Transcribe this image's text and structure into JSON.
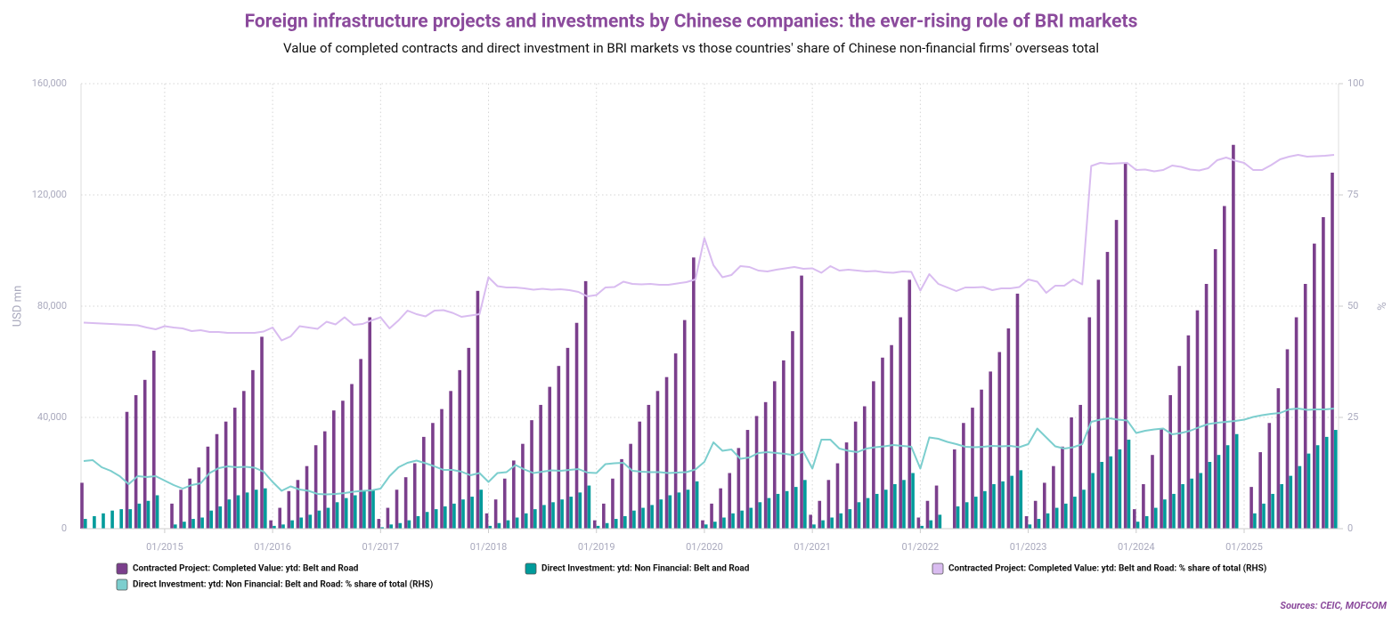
{
  "chart_data": {
    "type": "bar",
    "title": "Foreign infrastructure projects and investments by Chinese companies: the ever-rising role of BRI markets",
    "subtitle": "Value of completed contracts and direct investment in BRI markets vs those countries' share of Chinese non-financial firms' overseas total",
    "y_label": "USD mn",
    "y2_label": "%",
    "source": "Sources: CEIC, MOFCOM",
    "grid": true,
    "categories": [
      null,
      null,
      null,
      null,
      null,
      null,
      null,
      null,
      null,
      "01/2015",
      null,
      null,
      null,
      null,
      null,
      null,
      null,
      null,
      null,
      null,
      null,
      "01/2016",
      null,
      null,
      null,
      null,
      null,
      null,
      null,
      null,
      null,
      null,
      null,
      "01/2017",
      null,
      null,
      null,
      null,
      null,
      null,
      null,
      null,
      null,
      null,
      null,
      "01/2018",
      null,
      null,
      null,
      null,
      null,
      null,
      null,
      null,
      null,
      null,
      null,
      "01/2019",
      null,
      null,
      null,
      null,
      null,
      null,
      null,
      null,
      null,
      null,
      null,
      "01/2020",
      null,
      null,
      null,
      null,
      null,
      null,
      null,
      null,
      null,
      null,
      null,
      "01/2021",
      null,
      null,
      null,
      null,
      null,
      null,
      null,
      null,
      null,
      null,
      null,
      "01/2022",
      null,
      null,
      null,
      null,
      null,
      null,
      null,
      null,
      null,
      null,
      null,
      "01/2023",
      null,
      null,
      null,
      null,
      null,
      null,
      null,
      null,
      null,
      null,
      null,
      "01/2024",
      null,
      null,
      null,
      null,
      null,
      null,
      null,
      null,
      null,
      null,
      null,
      "01/2025",
      null,
      null,
      null,
      null,
      null,
      null,
      null,
      null,
      null,
      null
    ],
    "ylim": [
      0,
      160000
    ],
    "yticks": [
      0,
      {
        "value": 40000,
        "label": "40,000"
      },
      {
        "value": 80000,
        "label": "80,000"
      },
      {
        "value": 120000,
        "label": "120,000"
      },
      {
        "value": 160000,
        "label": "160,000"
      }
    ],
    "y2lim": [
      0,
      100
    ],
    "y2ticks": [
      0,
      25,
      50,
      75,
      100
    ],
    "series": [
      {
        "name": "Contracted Project: Completed Value: ytd: Belt and Road",
        "color": "#7b3f8c",
        "type": "bar",
        "values": [
          16500,
          null,
          null,
          null,
          null,
          42000,
          48000,
          53500,
          64000,
          null,
          9000,
          14000,
          18000,
          22000,
          29500,
          34000,
          38500,
          43500,
          49500,
          57000,
          69000,
          3000,
          7500,
          13500,
          17500,
          22500,
          30000,
          35000,
          42500,
          46000,
          52000,
          61000,
          76000,
          3500,
          7500,
          14000,
          18500,
          23500,
          33000,
          38000,
          43000,
          49500,
          57000,
          65000,
          85500,
          5500,
          10500,
          18000,
          24500,
          30500,
          39000,
          44500,
          51000,
          58500,
          65000,
          74000,
          89000,
          3000,
          9000,
          18000,
          25000,
          30500,
          38500,
          44500,
          49500,
          54500,
          63000,
          75000,
          97500,
          3000,
          9000,
          14500,
          20000,
          29000,
          35500,
          40500,
          45500,
          53000,
          60500,
          71000,
          91000,
          5000,
          10000,
          17500,
          23500,
          31000,
          38500,
          44000,
          53000,
          61500,
          66000,
          76000,
          89500,
          4000,
          10000,
          15500,
          null,
          28500,
          38000,
          43500,
          50000,
          56500,
          63500,
          72000,
          84500,
          4500,
          10000,
          16500,
          22500,
          29500,
          40000,
          44500,
          76000,
          89500,
          99500,
          111000,
          131500,
          7000,
          16000,
          26500,
          36000,
          48000,
          58500,
          69500,
          78500,
          88000,
          100500,
          116000,
          138000,
          null,
          15000,
          27500,
          38000,
          50500,
          64500,
          76000,
          88000,
          102500,
          112000,
          128000
        ]
      },
      {
        "name": "Direct Investment: ytd: Non Financial: Belt and Road",
        "color": "#009b9b",
        "type": "bar",
        "values": [
          3500,
          4500,
          5500,
          6500,
          7000,
          7000,
          9000,
          10000,
          12000,
          null,
          1500,
          2500,
          3500,
          4000,
          6500,
          8000,
          10500,
          12000,
          13000,
          14000,
          14500,
          1000,
          1500,
          3000,
          4000,
          5000,
          6500,
          7500,
          9500,
          11000,
          12000,
          13500,
          14000,
          500,
          1500,
          2000,
          3000,
          4500,
          6000,
          7000,
          8000,
          9000,
          10500,
          11500,
          14000,
          1000,
          2000,
          3000,
          4000,
          5500,
          7000,
          8500,
          9500,
          10500,
          11500,
          13000,
          15500,
          1000,
          2000,
          3500,
          4500,
          6500,
          7500,
          8500,
          10500,
          12000,
          13000,
          14000,
          17000,
          1500,
          2500,
          4000,
          5500,
          6500,
          7500,
          9500,
          11000,
          12500,
          13500,
          15000,
          17500,
          1500,
          3000,
          4000,
          5500,
          7000,
          9500,
          11000,
          12500,
          14000,
          16000,
          17500,
          20000,
          1000,
          3000,
          5000,
          null,
          8000,
          9500,
          11500,
          13500,
          16000,
          17000,
          19000,
          21000,
          1500,
          3500,
          5500,
          7500,
          9000,
          11500,
          14000,
          20000,
          24000,
          26000,
          28500,
          32000,
          2500,
          4500,
          7500,
          10500,
          12500,
          16000,
          18000,
          20000,
          24000,
          26500,
          30000,
          34000,
          null,
          5500,
          9000,
          12500,
          16000,
          19000,
          22500,
          27000,
          30000,
          33000,
          35500
        ]
      },
      {
        "name": "Contracted Project: Completed Value: ytd: Belt and Road: % share of total (RHS)",
        "color": "#d9bcf0",
        "type": "line",
        "axis": "y2",
        "values": [
          46.3,
          46.2,
          46.1,
          46,
          45.9,
          45.8,
          45.7,
          45.2,
          44.8,
          45.5,
          45.2,
          45,
          44.4,
          44.6,
          44.2,
          44.2,
          44,
          44,
          44,
          44,
          44.3,
          45.2,
          42.3,
          43.2,
          45.5,
          45.2,
          44.9,
          46.5,
          45.9,
          47.5,
          45.8,
          46,
          46.8,
          47.5,
          45,
          46.8,
          49,
          48.2,
          47.7,
          49,
          49.1,
          48.5,
          47.6,
          47.9,
          48.2,
          56.5,
          54.5,
          54.2,
          54.2,
          54,
          53.7,
          53.9,
          53.7,
          53.8,
          53.6,
          53.2,
          52.2,
          52.5,
          54.2,
          54.3,
          55.5,
          55,
          54.9,
          55,
          54.8,
          54.8,
          55.1,
          55.4,
          56,
          65.3,
          59.2,
          56.5,
          57,
          59,
          58.8,
          58,
          57.8,
          58.2,
          58.5,
          58.8,
          58.4,
          58.5,
          57.5,
          59,
          58,
          58.2,
          58,
          57.8,
          57.9,
          57.6,
          57.5,
          57.8,
          57.7,
          53.5,
          57.2,
          55,
          54.2,
          53.4,
          54.2,
          54.2,
          54.3,
          53.6,
          54,
          54,
          54.3,
          56,
          55.5,
          53,
          54.6,
          54.6,
          56,
          54.9,
          81.5,
          82.2,
          82,
          82.1,
          82.2,
          80.6,
          80.7,
          80.3,
          80.6,
          81.6,
          81.3,
          80.7,
          80.5,
          81,
          82.8,
          83.4,
          82.7,
          82.2,
          80.6,
          80.6,
          81.7,
          83,
          83.6,
          84,
          83.6,
          83.7,
          83.8,
          84
        ]
      },
      {
        "name": "Direct Investment: ytd: Non Financial: Belt and Road: % share of total (RHS)",
        "color": "#7ccece",
        "type": "line",
        "axis": "y2",
        "values": [
          15.2,
          15.4,
          13.8,
          13,
          11.8,
          10,
          11.8,
          11.6,
          11.8,
          10.8,
          9.8,
          9,
          9.8,
          10.2,
          12.5,
          13.6,
          14,
          13.8,
          13.9,
          13.7,
          12.8,
          10.5,
          8.5,
          9.5,
          8.8,
          8.5,
          7.8,
          7.7,
          7.8,
          8,
          8.3,
          8.5,
          8.6,
          9,
          11.8,
          13.8,
          14.8,
          15.3,
          14.7,
          14,
          13.2,
          13.2,
          12.8,
          12,
          12.5,
          10.5,
          12.5,
          12.7,
          14.3,
          13.3,
          12.5,
          12.8,
          13.1,
          13,
          13.2,
          13.4,
          12.6,
          12.5,
          14.5,
          14.7,
          14.8,
          13,
          12.8,
          12.7,
          12.7,
          12.5,
          12.6,
          12.7,
          13.3,
          15,
          19.4,
          17.5,
          17.8,
          15.7,
          16,
          17,
          17.2,
          17,
          16.8,
          16.5,
          17.3,
          13.5,
          20,
          20,
          18,
          17.5,
          17.2,
          18,
          18.3,
          18.5,
          18.8,
          18.6,
          18.4,
          13.5,
          20.5,
          20.2,
          19.5,
          19,
          18.4,
          18.3,
          18.4,
          18.6,
          18.5,
          18.6,
          18.3,
          19,
          22.5,
          20.5,
          18.5,
          18,
          18.3,
          19,
          24,
          24.5,
          24.8,
          24.5,
          24.3,
          21.5,
          22,
          22.3,
          22.5,
          21.2,
          21.5,
          22,
          22.8,
          23.5,
          23.8,
          24,
          24.2,
          24.5,
          25.1,
          25.5,
          25.8,
          26,
          26.8,
          27,
          26.7,
          26.8,
          26.8,
          27
        ]
      }
    ]
  }
}
